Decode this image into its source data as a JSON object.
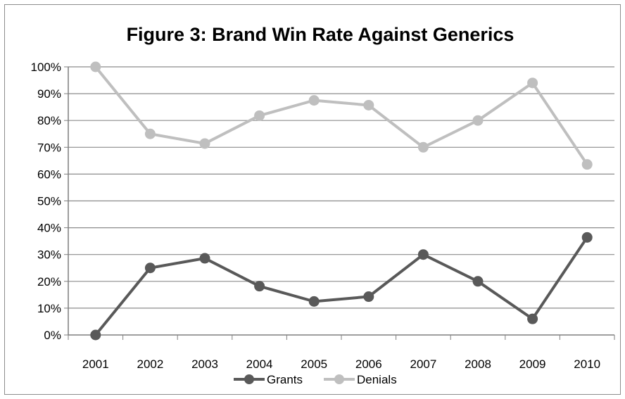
{
  "chart_data": {
    "type": "line",
    "title": "Figure 3: Brand Win Rate Against Generics",
    "xlabel": "",
    "ylabel": "",
    "categories": [
      "2001",
      "2002",
      "2003",
      "2004",
      "2005",
      "2006",
      "2007",
      "2008",
      "2009",
      "2010"
    ],
    "y_ticks": [
      "0%",
      "10%",
      "20%",
      "30%",
      "40%",
      "50%",
      "60%",
      "70%",
      "80%",
      "90%",
      "100%"
    ],
    "ylim": [
      0,
      100
    ],
    "y_unit": "%",
    "grid": true,
    "legend_position": "bottom",
    "series": [
      {
        "name": "Grants",
        "color": "#595959",
        "values": [
          0,
          25,
          28.6,
          18.2,
          12.5,
          14.3,
          30,
          20,
          6,
          36.4
        ]
      },
      {
        "name": "Denials",
        "color": "#bfbfbf",
        "values": [
          100,
          75,
          71.4,
          81.8,
          87.5,
          85.7,
          70,
          80,
          94,
          63.6
        ]
      }
    ]
  }
}
